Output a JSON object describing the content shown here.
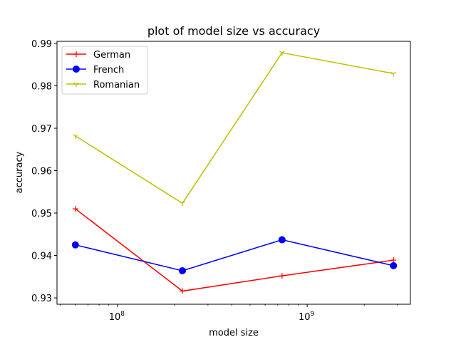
{
  "chart_data": {
    "type": "line",
    "title": "plot of model size vs accuracy",
    "xlabel": "model size",
    "ylabel": "accuracy",
    "xscale": "log",
    "xlim": [
      48000000,
      3500000000
    ],
    "ylim": [
      0.9285,
      0.9905
    ],
    "x": [
      60000000,
      220000000,
      737000000,
      2850000000
    ],
    "x_ticks": [
      {
        "value": 100000000,
        "base": "10",
        "exp": "8"
      },
      {
        "value": 1000000000,
        "base": "10",
        "exp": "9"
      }
    ],
    "y_ticks": [
      0.93,
      0.94,
      0.95,
      0.96,
      0.97,
      0.98,
      0.99
    ],
    "y_tick_labels": [
      "0.93",
      "0.94",
      "0.95",
      "0.96",
      "0.97",
      "0.98",
      "0.99"
    ],
    "legend_position": "top-left",
    "grid": false,
    "series": [
      {
        "name": "German",
        "color": "#ff0000",
        "marker": "plus",
        "values": [
          0.951,
          0.9316,
          0.9352,
          0.9389
        ]
      },
      {
        "name": "French",
        "color": "#0000ff",
        "marker": "circle",
        "values": [
          0.9425,
          0.9364,
          0.9437,
          0.9376
        ]
      },
      {
        "name": "Romanian",
        "color": "#bfbf00",
        "marker": "tri_down",
        "values": [
          0.9682,
          0.9523,
          0.9878,
          0.9829
        ]
      }
    ]
  }
}
